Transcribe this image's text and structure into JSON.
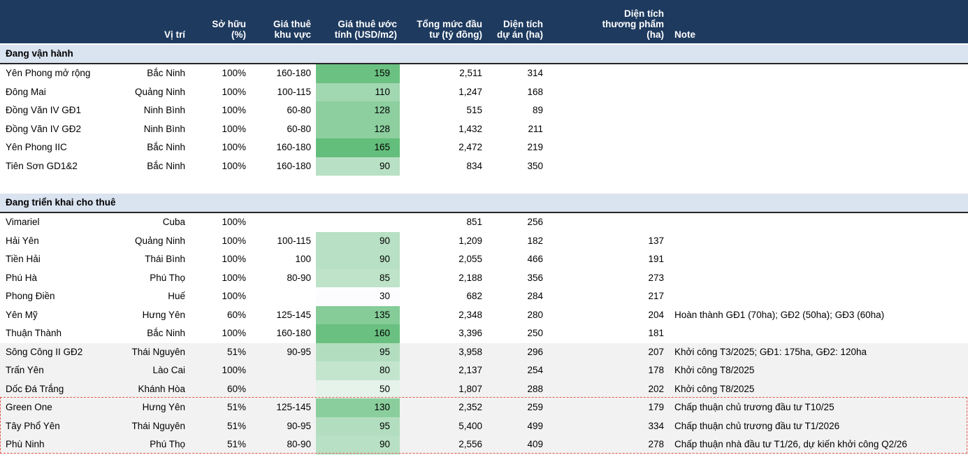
{
  "colors": {
    "header_bg": "#1E3A5F",
    "header_text": "#FFFFFF",
    "section_bg": "#DAE3F0",
    "section_border": "#262626",
    "shaded_bg": "#F2F2F2",
    "dashed_border": "#E65650",
    "text": "#000000"
  },
  "heatmap": {
    "column": "est_rent",
    "min_value": 30,
    "max_value": 165,
    "min_color": "#FCFCFF",
    "max_color": "#63BE7B"
  },
  "header": {
    "columns": [
      {
        "key": "name",
        "label": ""
      },
      {
        "key": "location",
        "label": "Vị trí"
      },
      {
        "key": "ownership",
        "label": "Sở hữu\n(%)"
      },
      {
        "key": "area_rent",
        "label": "Giá thuê\nkhu vực"
      },
      {
        "key": "est_rent",
        "label": "Giá thuê ước\ntính (USD/m2)"
      },
      {
        "key": "investment",
        "label": "Tổng mức đầu\ntư (tỷ đồng)"
      },
      {
        "key": "project_area",
        "label": "Diện tích\ndự án (ha)"
      },
      {
        "key": "commercial_area",
        "label": "Diện tích\nthương phẩm\n(ha)"
      },
      {
        "key": "note",
        "label": "Note"
      }
    ]
  },
  "sections": [
    {
      "title": "Đang vận hành",
      "rows": [
        {
          "name": "Yên Phong mở rộng",
          "location": "Bắc Ninh",
          "ownership": "100%",
          "area_rent": "160-180",
          "est_rent": 159,
          "investment": "2,511",
          "project_area": "314",
          "commercial_area": "",
          "note": "",
          "shaded": false
        },
        {
          "name": "Đông Mai",
          "location": "Quảng Ninh",
          "ownership": "100%",
          "area_rent": "100-115",
          "est_rent": 110,
          "investment": "1,247",
          "project_area": "168",
          "commercial_area": "",
          "note": "",
          "shaded": false
        },
        {
          "name": "Đồng Văn IV GĐ1",
          "location": "Ninh Bình",
          "ownership": "100%",
          "area_rent": "60-80",
          "est_rent": 128,
          "investment": "515",
          "project_area": "89",
          "commercial_area": "",
          "note": "",
          "shaded": false
        },
        {
          "name": "Đồng Văn IV GĐ2",
          "location": "Ninh Bình",
          "ownership": "100%",
          "area_rent": "60-80",
          "est_rent": 128,
          "investment": "1,432",
          "project_area": "211",
          "commercial_area": "",
          "note": "",
          "shaded": false
        },
        {
          "name": "Yên Phong IIC",
          "location": "Bắc Ninh",
          "ownership": "100%",
          "area_rent": "160-180",
          "est_rent": 165,
          "investment": "2,472",
          "project_area": "219",
          "commercial_area": "",
          "note": "",
          "shaded": false
        },
        {
          "name": "Tiên Sơn GD1&2",
          "location": "Bắc Ninh",
          "ownership": "100%",
          "area_rent": "160-180",
          "est_rent": 90,
          "investment": "834",
          "project_area": "350",
          "commercial_area": "",
          "note": "",
          "shaded": false
        }
      ]
    },
    {
      "title": "Đang triển khai cho thuê",
      "rows": [
        {
          "name": "Vimariel",
          "location": "Cuba",
          "ownership": "100%",
          "area_rent": "",
          "est_rent": null,
          "investment": "851",
          "project_area": "256",
          "commercial_area": "",
          "note": "",
          "shaded": false
        },
        {
          "name": "Hải Yên",
          "location": "Quảng Ninh",
          "ownership": "100%",
          "area_rent": "100-115",
          "est_rent": 90,
          "investment": "1,209",
          "project_area": "182",
          "commercial_area": "137",
          "note": "",
          "shaded": false
        },
        {
          "name": "Tiền Hải",
          "location": "Thái Bình",
          "ownership": "100%",
          "area_rent": "100",
          "est_rent": 90,
          "investment": "2,055",
          "project_area": "466",
          "commercial_area": "191",
          "note": "",
          "shaded": false
        },
        {
          "name": "Phú Hà",
          "location": "Phú Thọ",
          "ownership": "100%",
          "area_rent": "80-90",
          "est_rent": 85,
          "investment": "2,188",
          "project_area": "356",
          "commercial_area": "273",
          "note": "",
          "shaded": false
        },
        {
          "name": "Phong Điền",
          "location": "Huế",
          "ownership": "100%",
          "area_rent": "",
          "est_rent": 30,
          "investment": "682",
          "project_area": "284",
          "commercial_area": "217",
          "note": "",
          "shaded": false
        },
        {
          "name": "Yên Mỹ",
          "location": "Hưng Yên",
          "ownership": "60%",
          "area_rent": "125-145",
          "est_rent": 135,
          "investment": "2,348",
          "project_area": "280",
          "commercial_area": "204",
          "note": "Hoàn thành GĐ1 (70ha); GĐ2 (50ha); GĐ3 (60ha)",
          "shaded": false
        },
        {
          "name": "Thuận Thành",
          "location": "Bắc Ninh",
          "ownership": "100%",
          "area_rent": "160-180",
          "est_rent": 160,
          "investment": "3,396",
          "project_area": "250",
          "commercial_area": "181",
          "note": "",
          "shaded": false
        },
        {
          "name": "Sông Công II GĐ2",
          "location": "Thái Nguyên",
          "ownership": "51%",
          "area_rent": "90-95",
          "est_rent": 95,
          "investment": "3,958",
          "project_area": "296",
          "commercial_area": "207",
          "note": "Khởi công T3/2025; GĐ1: 175ha, GĐ2: 120ha",
          "shaded": true
        },
        {
          "name": "Trấn Yên",
          "location": "Lào Cai",
          "ownership": "100%",
          "area_rent": "",
          "est_rent": 80,
          "investment": "2,137",
          "project_area": "254",
          "commercial_area": "178",
          "note": "Khởi công T8/2025",
          "shaded": true
        },
        {
          "name": "Dốc Đá Trắng",
          "location": "Khánh Hòa",
          "ownership": "60%",
          "area_rent": "",
          "est_rent": 50,
          "investment": "1,807",
          "project_area": "288",
          "commercial_area": "202",
          "note": "Khởi công T8/2025",
          "shaded": true
        },
        {
          "name": "Green One",
          "location": "Hưng Yên",
          "ownership": "51%",
          "area_rent": "125-145",
          "est_rent": 130,
          "investment": "2,352",
          "project_area": "259",
          "commercial_area": "179",
          "note": "Chấp thuận chủ trương đầu tư T10/25",
          "shaded": true,
          "dashed_group": true
        },
        {
          "name": "Tây Phổ Yên",
          "location": "Thái Nguyên",
          "ownership": "51%",
          "area_rent": "90-95",
          "est_rent": 95,
          "investment": "5,400",
          "project_area": "499",
          "commercial_area": "334",
          "note": "Chấp thuận chủ trương đầu tư T1/2026",
          "shaded": true,
          "dashed_group": true
        },
        {
          "name": "Phù Ninh",
          "location": "Phú Thọ",
          "ownership": "51%",
          "area_rent": "80-90",
          "est_rent": 90,
          "investment": "2,556",
          "project_area": "409",
          "commercial_area": "278",
          "note": "Chấp thuận nhà đầu tư T1/26, dự kiến khởi công Q2/26",
          "shaded": true,
          "dashed_group": true
        }
      ]
    }
  ]
}
